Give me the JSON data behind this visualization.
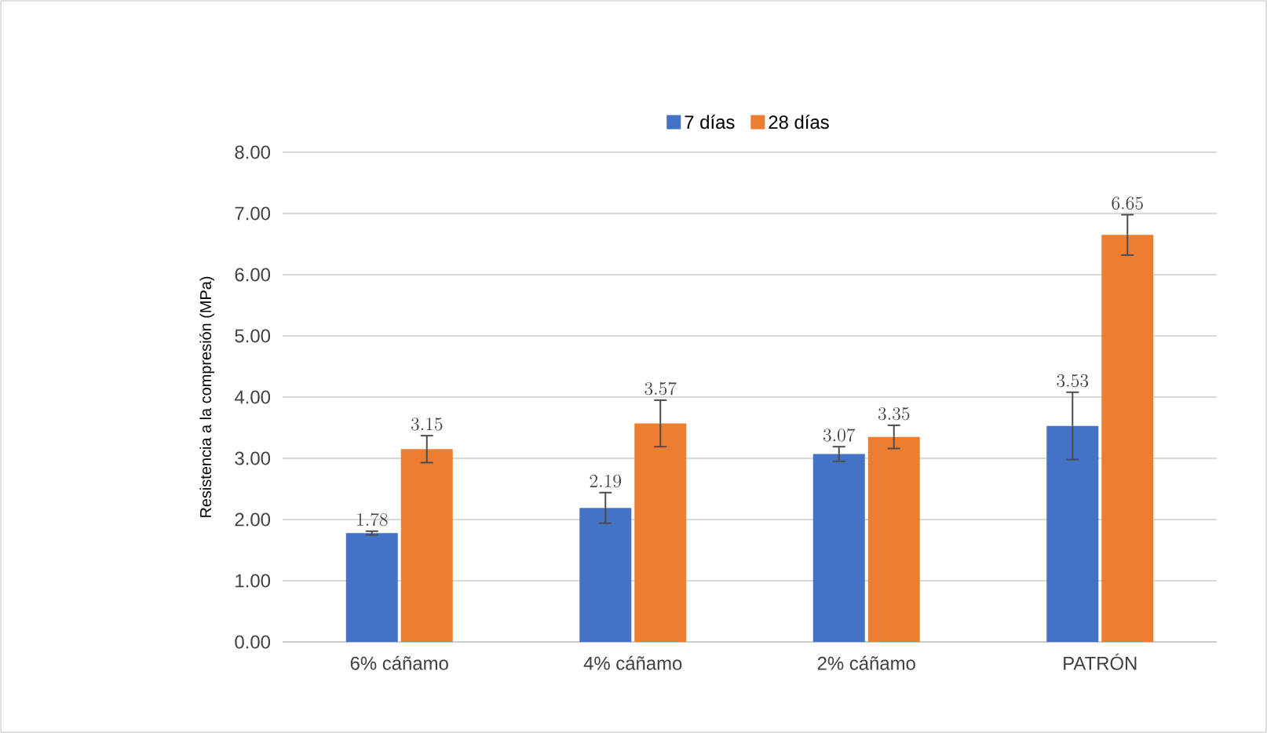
{
  "chart_data": {
    "type": "bar",
    "ylabel": "Resistencia a la compresión (MPa)",
    "categories": [
      "6% cáñamo",
      "4% cáñamo",
      "2% cáñamo",
      "PATRÓN"
    ],
    "series": [
      {
        "name": "7 días",
        "color": "#4472c4",
        "values": [
          1.78,
          2.19,
          3.07,
          3.53
        ],
        "errors": [
          0.03,
          0.25,
          0.12,
          0.55
        ]
      },
      {
        "name": "28 días",
        "color": "#ed7d31",
        "values": [
          3.15,
          3.57,
          3.35,
          6.65
        ],
        "errors": [
          0.22,
          0.38,
          0.19,
          0.33
        ]
      }
    ],
    "ylim": [
      0,
      8
    ],
    "yticks": [
      {
        "value": 0,
        "label": "0.00"
      },
      {
        "value": 1,
        "label": "1.00"
      },
      {
        "value": 2,
        "label": "2.00"
      },
      {
        "value": 3,
        "label": "3.00"
      },
      {
        "value": 4,
        "label": "4.00"
      },
      {
        "value": 5,
        "label": "5.00"
      },
      {
        "value": 6,
        "label": "6.00"
      },
      {
        "value": 7,
        "label": "7.00"
      },
      {
        "value": 8,
        "label": "8.00"
      }
    ],
    "grid": "y",
    "legend": "top",
    "data_labels": true
  }
}
